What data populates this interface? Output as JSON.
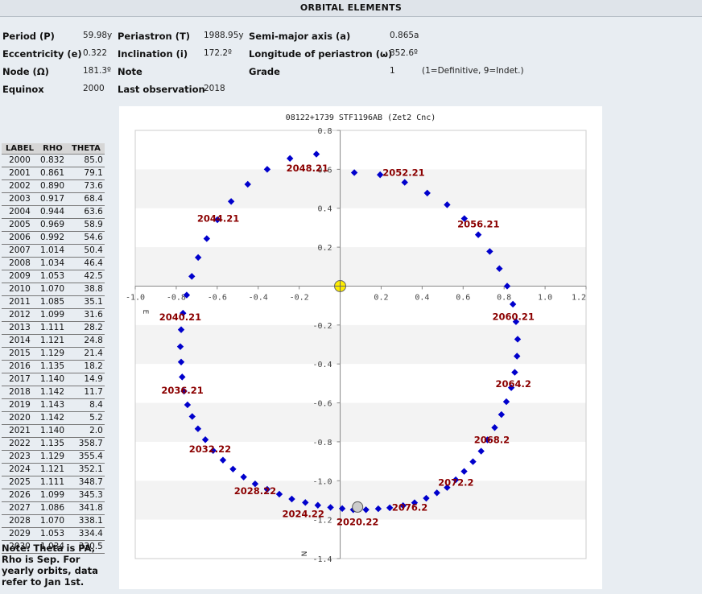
{
  "header": {
    "title": "ORBITAL ELEMENTS"
  },
  "elements": {
    "period_label": "Period (P)",
    "period_value": "59.98y",
    "periastron_label": "Periastron (T)",
    "periastron_value": "1988.95y",
    "semimajor_label": "Semi-major axis (a)",
    "semimajor_value": "0.865a",
    "ecc_label": "Eccentricity (e)",
    "ecc_value": "0.322",
    "incl_label": "Inclination (i)",
    "incl_value": "172.2º",
    "lonperi_label": "Longitude of periastron (ω)",
    "lonperi_value": "352.6º",
    "node_label": "Node (Ω)",
    "node_value": "181.3º",
    "note_label": "Note",
    "grade_label": "Grade",
    "grade_value": "1",
    "grade_desc": "(1=Definitive, 9=Indet.)",
    "equinox_label": "Equinox",
    "equinox_value": "2000",
    "lastobs_label": "Last observation",
    "lastobs_value": "2018"
  },
  "table": {
    "headers": [
      "LABEL",
      "RHO",
      "THETA"
    ],
    "rows": [
      [
        "2000",
        "0.832",
        "85.0"
      ],
      [
        "2001",
        "0.861",
        "79.1"
      ],
      [
        "2002",
        "0.890",
        "73.6"
      ],
      [
        "2003",
        "0.917",
        "68.4"
      ],
      [
        "2004",
        "0.944",
        "63.6"
      ],
      [
        "2005",
        "0.969",
        "58.9"
      ],
      [
        "2006",
        "0.992",
        "54.6"
      ],
      [
        "2007",
        "1.014",
        "50.4"
      ],
      [
        "2008",
        "1.034",
        "46.4"
      ],
      [
        "2009",
        "1.053",
        "42.5"
      ],
      [
        "2010",
        "1.070",
        "38.8"
      ],
      [
        "2011",
        "1.085",
        "35.1"
      ],
      [
        "2012",
        "1.099",
        "31.6"
      ],
      [
        "2013",
        "1.111",
        "28.2"
      ],
      [
        "2014",
        "1.121",
        "24.8"
      ],
      [
        "2015",
        "1.129",
        "21.4"
      ],
      [
        "2016",
        "1.135",
        "18.2"
      ],
      [
        "2017",
        "1.140",
        "14.9"
      ],
      [
        "2018",
        "1.142",
        "11.7"
      ],
      [
        "2019",
        "1.143",
        "8.4"
      ],
      [
        "2020",
        "1.142",
        "5.2"
      ],
      [
        "2021",
        "1.140",
        "2.0"
      ],
      [
        "2022",
        "1.135",
        "358.7"
      ],
      [
        "2023",
        "1.129",
        "355.4"
      ],
      [
        "2024",
        "1.121",
        "352.1"
      ],
      [
        "2025",
        "1.111",
        "348.7"
      ],
      [
        "2026",
        "1.099",
        "345.3"
      ],
      [
        "2027",
        "1.086",
        "341.8"
      ],
      [
        "2028",
        "1.070",
        "338.1"
      ],
      [
        "2029",
        "1.053",
        "334.4"
      ],
      [
        "2030",
        "1.034",
        "330.5"
      ]
    ]
  },
  "note": "Note: Theta is PA, Rho is Sep. For yearly orbits, data refer to Jan 1st.",
  "chart_data": {
    "type": "scatter",
    "title": "08122+1739 STF1196AB (Zet2 Cnc)",
    "xlim": [
      -1.0,
      1.2
    ],
    "ylim": [
      -1.4,
      0.8
    ],
    "x_ticks": [
      "-1.0",
      "-0.8",
      "-0.6",
      "-0.4",
      "-0.2",
      "0.2",
      "0.4",
      "0.6",
      "0.8",
      "1.0",
      "1.2"
    ],
    "y_ticks": [
      "0.8",
      "0.6",
      "0.4",
      "0.2",
      "-0.2",
      "-0.4",
      "-0.6",
      "-0.8",
      "-1.0",
      "-1.2",
      "-1.4"
    ],
    "east_label": "E",
    "north_label": "N",
    "grid": "horizontal bands",
    "colors": {
      "points": "#0000cc",
      "labels": "#8b0000",
      "primary": "#ffee00",
      "current": "#cccccc"
    },
    "primary_star": [
      0.0,
      0.0
    ],
    "current_position": [
      0.085,
      -1.135
    ],
    "orbit": [
      [
        0.069,
        0.583
      ],
      [
        0.195,
        0.572
      ],
      [
        0.315,
        0.533
      ],
      [
        0.425,
        0.478
      ],
      [
        0.522,
        0.418
      ],
      [
        0.606,
        0.347
      ],
      [
        0.674,
        0.264
      ],
      [
        0.73,
        0.178
      ],
      [
        0.777,
        0.09
      ],
      [
        0.815,
        0.0
      ],
      [
        0.843,
        -0.093
      ],
      [
        0.858,
        -0.183
      ],
      [
        0.866,
        -0.273
      ],
      [
        0.863,
        -0.36
      ],
      [
        0.852,
        -0.443
      ],
      [
        0.835,
        -0.522
      ],
      [
        0.811,
        -0.594
      ],
      [
        0.787,
        -0.66
      ],
      [
        0.754,
        -0.727
      ],
      [
        0.719,
        -0.79
      ],
      [
        0.688,
        -0.848
      ],
      [
        0.648,
        -0.902
      ],
      [
        0.605,
        -0.952
      ],
      [
        0.564,
        -0.995
      ],
      [
        0.522,
        -1.035
      ],
      [
        0.472,
        -1.062
      ],
      [
        0.42,
        -1.09
      ],
      [
        0.363,
        -1.113
      ],
      [
        0.307,
        -1.128
      ],
      [
        0.242,
        -1.139
      ],
      [
        0.186,
        -1.144
      ],
      [
        0.126,
        -1.149
      ],
      [
        0.064,
        -1.149
      ],
      [
        0.01,
        -1.143
      ],
      [
        -0.047,
        -1.137
      ],
      [
        -0.109,
        -1.126
      ],
      [
        -0.17,
        -1.112
      ],
      [
        -0.236,
        -1.094
      ],
      [
        -0.297,
        -1.069
      ],
      [
        -0.356,
        -1.044
      ],
      [
        -0.415,
        -1.016
      ],
      [
        -0.471,
        -0.981
      ],
      [
        -0.523,
        -0.94
      ],
      [
        -0.572,
        -0.894
      ],
      [
        -0.62,
        -0.845
      ],
      [
        -0.658,
        -0.789
      ],
      [
        -0.694,
        -0.733
      ],
      [
        -0.722,
        -0.67
      ],
      [
        -0.745,
        -0.61
      ],
      [
        -0.762,
        -0.54
      ],
      [
        -0.771,
        -0.467
      ],
      [
        -0.776,
        -0.39
      ],
      [
        -0.78,
        -0.311
      ],
      [
        -0.776,
        -0.224
      ],
      [
        -0.767,
        -0.139
      ],
      [
        -0.749,
        -0.046
      ],
      [
        -0.724,
        0.05
      ],
      [
        -0.693,
        0.147
      ],
      [
        -0.651,
        0.244
      ],
      [
        -0.599,
        0.341
      ],
      [
        -0.532,
        0.435
      ],
      [
        -0.451,
        0.523
      ],
      [
        -0.356,
        0.6
      ],
      [
        -0.245,
        0.656
      ],
      [
        -0.116,
        0.678
      ]
    ],
    "annotations": [
      {
        "text": "2048.21",
        "x": -0.16,
        "y": 0.605
      },
      {
        "text": "2052.21",
        "x": 0.31,
        "y": 0.582
      },
      {
        "text": "2044.21",
        "x": -0.595,
        "y": 0.348
      },
      {
        "text": "2056.21",
        "x": 0.675,
        "y": 0.318
      },
      {
        "text": "2040.21",
        "x": -0.78,
        "y": -0.16
      },
      {
        "text": "2060.21",
        "x": 0.845,
        "y": -0.158
      },
      {
        "text": "2036.21",
        "x": -0.77,
        "y": -0.535
      },
      {
        "text": "2064.2",
        "x": 0.845,
        "y": -0.503
      },
      {
        "text": "2032.22",
        "x": -0.635,
        "y": -0.838
      },
      {
        "text": "2068.2",
        "x": 0.74,
        "y": -0.79
      },
      {
        "text": "2028.22",
        "x": -0.415,
        "y": -1.052
      },
      {
        "text": "2072.2",
        "x": 0.565,
        "y": -1.01
      },
      {
        "text": "2024.22",
        "x": -0.18,
        "y": -1.17
      },
      {
        "text": "2076.2",
        "x": 0.34,
        "y": -1.138
      },
      {
        "text": "2020.22",
        "x": 0.085,
        "y": -1.212
      }
    ]
  }
}
